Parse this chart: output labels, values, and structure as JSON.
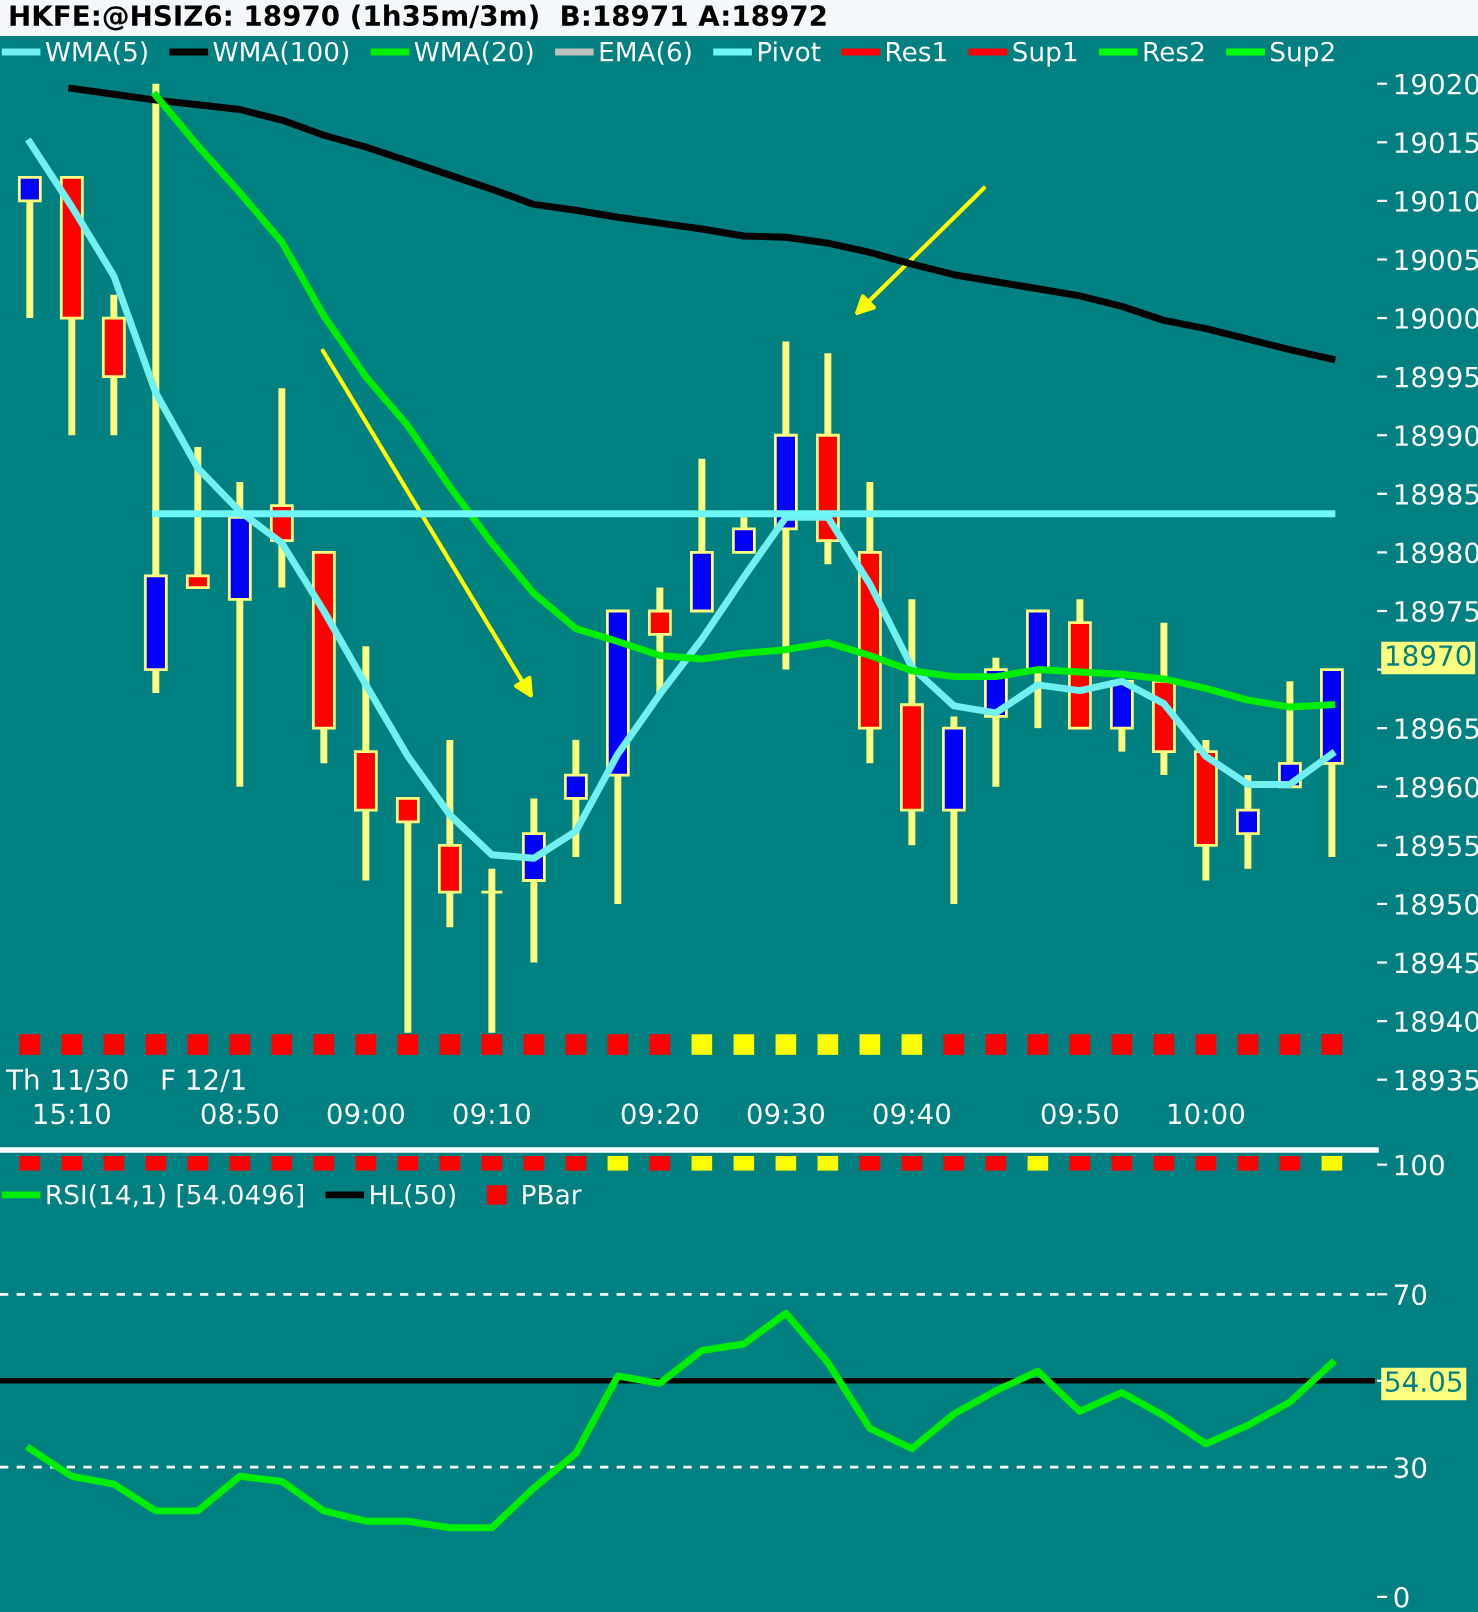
{
  "chart_data": [
    {
      "type": "candlestick",
      "title": "HKFE:@HSIZ6: 18970 (1h35m/3m)  B:18971 A:18972",
      "categories": [
        null,
        "15:10",
        null,
        null,
        null,
        "08:50",
        null,
        null,
        "09:00",
        null,
        null,
        "09:10",
        null,
        null,
        null,
        "09:20",
        null,
        null,
        "09:30",
        null,
        null,
        "09:40",
        null,
        null,
        null,
        "09:50",
        null,
        null,
        "10:00",
        null,
        null,
        null
      ],
      "ohlc": [
        [
          19010,
          19012,
          19000,
          19012
        ],
        [
          19012,
          19012,
          18990,
          19000
        ],
        [
          19000,
          19002,
          18990,
          18995
        ],
        [
          18970,
          19020,
          18968,
          18978
        ],
        [
          18978,
          18989,
          18977,
          18977
        ],
        [
          18976,
          18986,
          18960,
          18983
        ],
        [
          18984,
          18994,
          18977,
          18981
        ],
        [
          18980,
          18980,
          18962,
          18965
        ],
        [
          18963,
          18972,
          18952,
          18958
        ],
        [
          18959,
          18959,
          18939,
          18957
        ],
        [
          18955,
          18964,
          18948,
          18951
        ],
        [
          18951,
          18953,
          18939,
          18951
        ],
        [
          18952,
          18959,
          18945,
          18956
        ],
        [
          18959,
          18964,
          18954,
          18961
        ],
        [
          18961,
          18975,
          18950,
          18975
        ],
        [
          18975,
          18977,
          18968,
          18973
        ],
        [
          18975,
          18988,
          18975,
          18980
        ],
        [
          18980,
          18983,
          18980,
          18982
        ],
        [
          18982,
          18998,
          18970,
          18990
        ],
        [
          18990,
          18997,
          18979,
          18981
        ],
        [
          18980,
          18986,
          18962,
          18965
        ],
        [
          18967,
          18976,
          18955,
          18958
        ],
        [
          18958,
          18966,
          18950,
          18965
        ],
        [
          18966,
          18971,
          18960,
          18970
        ],
        [
          18970,
          18975,
          18965,
          18975
        ],
        [
          18974,
          18976,
          18965,
          18965
        ],
        [
          18965,
          18969,
          18963,
          18969
        ],
        [
          18969,
          18974,
          18961,
          18963
        ],
        [
          18963,
          18964,
          18952,
          18955
        ],
        [
          18956,
          18961,
          18953,
          18958
        ],
        [
          18960,
          18969,
          18960,
          18962
        ],
        [
          18962,
          18970,
          18954,
          18970
        ]
      ],
      "colors": [
        "#0000ff",
        "#ff0000",
        "#ff0000",
        "#0000ff",
        "#ff0000",
        "#0000ff",
        "#ff0000",
        "#ff0000",
        "#ff0000",
        "#ff0000",
        "#ff0000",
        "#ffff80",
        "#0000ff",
        "#0000ff",
        "#0000ff",
        "#ff0000",
        "#0000ff",
        "#0000ff",
        "#0000ff",
        "#ff0000",
        "#ff0000",
        "#ff0000",
        "#0000ff",
        "#0000ff",
        "#0000ff",
        "#ff0000",
        "#0000ff",
        "#ff0000",
        "#ff0000",
        "#0000ff",
        "#0000ff",
        "#0000ff"
      ],
      "series": [
        {
          "name": "WMA(5)",
          "type": "line",
          "color": "#70f0f0",
          "values": [
            19015,
            19009.5,
            19003.6,
            18993.6,
            18987.2,
            18983.5,
            18980.8,
            18975,
            18968.7,
            18962.6,
            18957.6,
            18954.2,
            18953.9,
            18956.2,
            18962.8,
            18967.9,
            18972.6,
            18977.9,
            18983,
            18983,
            18977.3,
            18970.2,
            18966.9,
            18966.3,
            18968.7,
            18968.2,
            18969,
            18967.1,
            18962.6,
            18960.2,
            18960.2,
            18962.8
          ]
        },
        {
          "name": "WMA(100)",
          "type": "line",
          "color": "#000000",
          "values": [
            null,
            19019.6,
            19019.1,
            19018.6,
            19018.2,
            19017.8,
            19016.9,
            19015.6,
            19014.6,
            19013.4,
            19012.2,
            19011,
            19009.7,
            19009.2,
            19008.6,
            19008.1,
            19007.6,
            19007,
            19006.9,
            19006.4,
            19005.6,
            19004.6,
            19003.7,
            19003.1,
            19002.5,
            19001.9,
            19001,
            18999.8,
            18999.1,
            18998.2,
            18997.3,
            18996.5
          ]
        },
        {
          "name": "WMA(20)",
          "type": "line",
          "color": "#00ee00",
          "values": [
            null,
            null,
            null,
            19019,
            19014.7,
            19010.7,
            19006.5,
            19000.2,
            18995,
            18990.8,
            18985.6,
            18980.8,
            18976.5,
            18973.5,
            18972.4,
            18971.2,
            18970.9,
            18971.4,
            18971.7,
            18972.3,
            18971.2,
            18969.9,
            18969.4,
            18969.4,
            18970,
            18969.8,
            18969.6,
            18969.2,
            18968.4,
            18967.4,
            18966.8,
            18967
          ]
        },
        {
          "name": "EMA(6)",
          "type": "line",
          "color": "#c0c0c0",
          "values": [
            null,
            null,
            null,
            null,
            null,
            null,
            null,
            null,
            null,
            null,
            null,
            null,
            null,
            null,
            null,
            null,
            null,
            null,
            null,
            null,
            null,
            null,
            null,
            null,
            null,
            null,
            null,
            null,
            null,
            null,
            null,
            null
          ]
        },
        {
          "name": "Pivot",
          "type": "line",
          "color": "#70f8f8",
          "values": [
            null,
            null,
            null,
            18983.3,
            18983.3,
            18983.3,
            18983.3,
            18983.3,
            18983.3,
            18983.3,
            18983.3,
            18983.3,
            18983.3,
            18983.3,
            18983.3,
            18983.3,
            18983.3,
            18983.3,
            18983.3,
            18983.3,
            18983.3,
            18983.3,
            18983.3,
            18983.3,
            18983.3,
            18983.3,
            18983.3,
            18983.3,
            18983.3,
            18983.3,
            18983.3,
            18983.3
          ]
        },
        {
          "name": "Res1",
          "type": "line",
          "color": "#ff0000",
          "values": [
            null,
            null,
            null,
            null,
            null,
            null,
            null,
            null,
            null,
            null,
            null,
            null,
            null,
            null,
            null,
            null,
            null,
            null,
            null,
            null,
            null,
            null,
            null,
            null,
            null,
            null,
            null,
            null,
            null,
            null,
            null,
            null
          ]
        },
        {
          "name": "Sup1",
          "type": "line",
          "color": "#ff0000",
          "values": [
            null,
            null,
            null,
            null,
            null,
            null,
            null,
            null,
            null,
            null,
            null,
            null,
            null,
            null,
            null,
            null,
            null,
            null,
            null,
            null,
            null,
            null,
            null,
            null,
            null,
            null,
            null,
            null,
            null,
            null,
            null,
            null
          ]
        },
        {
          "name": "Res2",
          "type": "line",
          "color": "#00ff00",
          "values": [
            null,
            null,
            null,
            null,
            null,
            null,
            null,
            null,
            null,
            null,
            null,
            null,
            null,
            null,
            null,
            null,
            null,
            null,
            null,
            null,
            null,
            null,
            null,
            null,
            null,
            null,
            null,
            null,
            null,
            null,
            null,
            null
          ]
        },
        {
          "name": "Sup2",
          "type": "line",
          "color": "#00ff00",
          "values": [
            null,
            null,
            null,
            null,
            null,
            null,
            null,
            null,
            null,
            null,
            null,
            null,
            null,
            null,
            null,
            null,
            null,
            null,
            null,
            null,
            null,
            null,
            null,
            null,
            null,
            null,
            null,
            null,
            null,
            null,
            null,
            null
          ]
        },
        {
          "type": "scatter",
          "marker": "square",
          "values": [
            18938,
            18938,
            18938,
            18938,
            18938,
            18938,
            18938,
            18938,
            18938,
            18938,
            18938,
            18938,
            18938,
            18938,
            18938,
            18938,
            18938,
            18938,
            18938,
            18938,
            18938,
            18938,
            18938,
            18938,
            18938,
            18938,
            18938,
            18938,
            18938,
            18938,
            18938,
            18938
          ],
          "colors": [
            "#ff0000",
            "#ff0000",
            "#ff0000",
            "#ff0000",
            "#ff0000",
            "#ff0000",
            "#ff0000",
            "#ff0000",
            "#ff0000",
            "#ff0000",
            "#ff0000",
            "#ff0000",
            "#ff0000",
            "#ff0000",
            "#ff0000",
            "#ff0000",
            "#ffff00",
            "#ffff00",
            "#ffff00",
            "#ffff00",
            "#ffff00",
            "#ffff00",
            "#ff0000",
            "#ff0000",
            "#ff0000",
            "#ff0000",
            "#ff0000",
            "#ff0000",
            "#ff0000",
            "#ff0000",
            "#ff0000",
            "#ff0000"
          ]
        }
      ],
      "ylim": [
        18929,
        19021
      ],
      "yticks": [
        18935,
        18940,
        18945,
        18950,
        18955,
        18960,
        18965,
        {
          "value": 18970,
          "label": null
        },
        18975,
        18980,
        18985,
        18990,
        18995,
        19000,
        19005,
        19010,
        19015,
        19020
      ],
      "annotations": [
        "Th 11/30",
        "F 12/1",
        "18970"
      ],
      "legend": "top left",
      "grid": false
    },
    {
      "type": "line",
      "categories": [
        null,
        null,
        null,
        null,
        null,
        null,
        null,
        null,
        null,
        null,
        null,
        null,
        null,
        null,
        null,
        null,
        null,
        null,
        null,
        null,
        null,
        null,
        null,
        null,
        null,
        null,
        null,
        null,
        null,
        null,
        null,
        null
      ],
      "series": [
        {
          "name": "RSI(14,1) [54.0496]",
          "type": "line",
          "color": "#00ee00",
          "values": [
            34.3,
            27.9,
            26.1,
            19.9,
            19.9,
            27.9,
            26.7,
            19.9,
            17.5,
            17.5,
            16,
            16,
            25.2,
            33.2,
            51.1,
            49.4,
            57,
            58.5,
            65.6,
            54.2,
            39,
            34.3,
            42.3,
            47.7,
            52.2,
            42.9,
            47.3,
            41.9,
            35.4,
            39.7,
            45.1,
            54.05
          ]
        },
        {
          "name": "PBar",
          "type": "scatter",
          "marker": "square",
          "values": [
            101,
            101,
            101,
            101,
            101,
            101,
            101,
            101,
            101,
            101,
            101,
            101,
            101,
            101,
            101,
            101,
            101,
            101,
            101,
            101,
            101,
            101,
            101,
            101,
            101,
            101,
            101,
            101,
            101,
            101,
            101,
            101
          ],
          "colors": [
            "#ff0000",
            "#ff0000",
            "#ff0000",
            "#ff0000",
            "#ff0000",
            "#ff0000",
            "#ff0000",
            "#ff0000",
            "#ff0000",
            "#ff0000",
            "#ff0000",
            "#ff0000",
            "#ff0000",
            "#ff0000",
            "#ffff00",
            "#ff0000",
            "#ffff00",
            "#ffff00",
            "#ffff00",
            "#ffff00",
            "#ff0000",
            "#ff0000",
            "#ff0000",
            "#ff0000",
            "#ffff00",
            "#ff0000",
            "#ff0000",
            "#ff0000",
            "#ff0000",
            "#ff0000",
            "#ff0000",
            "#ffff00"
          ]
        }
      ],
      "ylim": [
        -3.5,
        102
      ],
      "yticks": [
        0,
        30,
        {
          "value": 50,
          "label": null
        },
        70,
        100
      ],
      "ref_lines": [
        {
          "axis": "y",
          "value": 50,
          "label": "HL(50)",
          "color": "#000000"
        },
        {
          "axis": "y",
          "value": 70,
          "color": "#ffffff",
          "line_style": "dashed"
        },
        {
          "axis": "y",
          "value": 30,
          "color": "#ffffff",
          "line_style": "dashed"
        }
      ],
      "annotations": [
        "54.05"
      ],
      "tick_labels": "y",
      "legend": "top left",
      "grid": false
    }
  ]
}
